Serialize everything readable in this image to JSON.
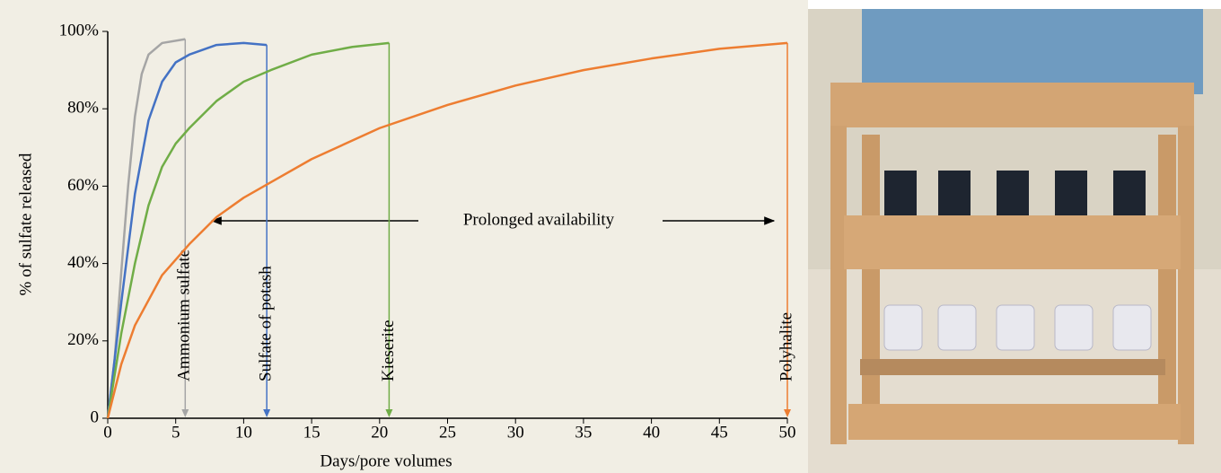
{
  "chart_data": {
    "type": "line",
    "xlabel": "Days/pore volumes",
    "ylabel": "% of sulfate released",
    "annotation": "Prolonged availability",
    "xlim": [
      0,
      50
    ],
    "ylim": [
      0,
      100
    ],
    "xticks": [
      0,
      5,
      10,
      15,
      20,
      25,
      30,
      35,
      40,
      45,
      50
    ],
    "yticks": [
      0,
      {
        "value": 20,
        "label": "20%"
      },
      {
        "value": 40,
        "label": "40%"
      },
      {
        "value": 60,
        "label": "60%"
      },
      {
        "value": 80,
        "label": "80%"
      },
      {
        "value": 100,
        "label": "100%"
      }
    ],
    "series": [
      {
        "name": "Ammonium sulfate",
        "color": "#a5a5a5",
        "x": [
          0,
          0.5,
          1,
          1.5,
          2,
          2.5,
          3,
          4,
          5.7
        ],
        "values": [
          0,
          15,
          38,
          60,
          78,
          89,
          94,
          97,
          98
        ]
      },
      {
        "name": "Sulfate of potash",
        "color": "#4472c4",
        "x": [
          0,
          1,
          2,
          3,
          4,
          5,
          6,
          8,
          10,
          11.7
        ],
        "values": [
          0,
          30,
          58,
          77,
          87,
          92,
          94,
          96.5,
          97,
          96.5
        ]
      },
      {
        "name": "Kieserite",
        "color": "#70ad47",
        "x": [
          0,
          1,
          2,
          3,
          4,
          5,
          6,
          8,
          10,
          12,
          15,
          18,
          20.7
        ],
        "values": [
          0,
          22,
          40,
          55,
          65,
          71,
          75,
          82,
          87,
          90,
          94,
          96,
          97
        ]
      },
      {
        "name": "Polyhalite",
        "color": "#ed7d31",
        "x": [
          0,
          1,
          2,
          4,
          6,
          8,
          10,
          12,
          15,
          20,
          25,
          30,
          35,
          40,
          45,
          50
        ],
        "values": [
          0,
          14,
          24,
          37,
          45,
          52,
          57,
          61,
          67,
          75,
          81,
          86,
          90,
          93,
          95.5,
          97
        ]
      }
    ]
  }
}
